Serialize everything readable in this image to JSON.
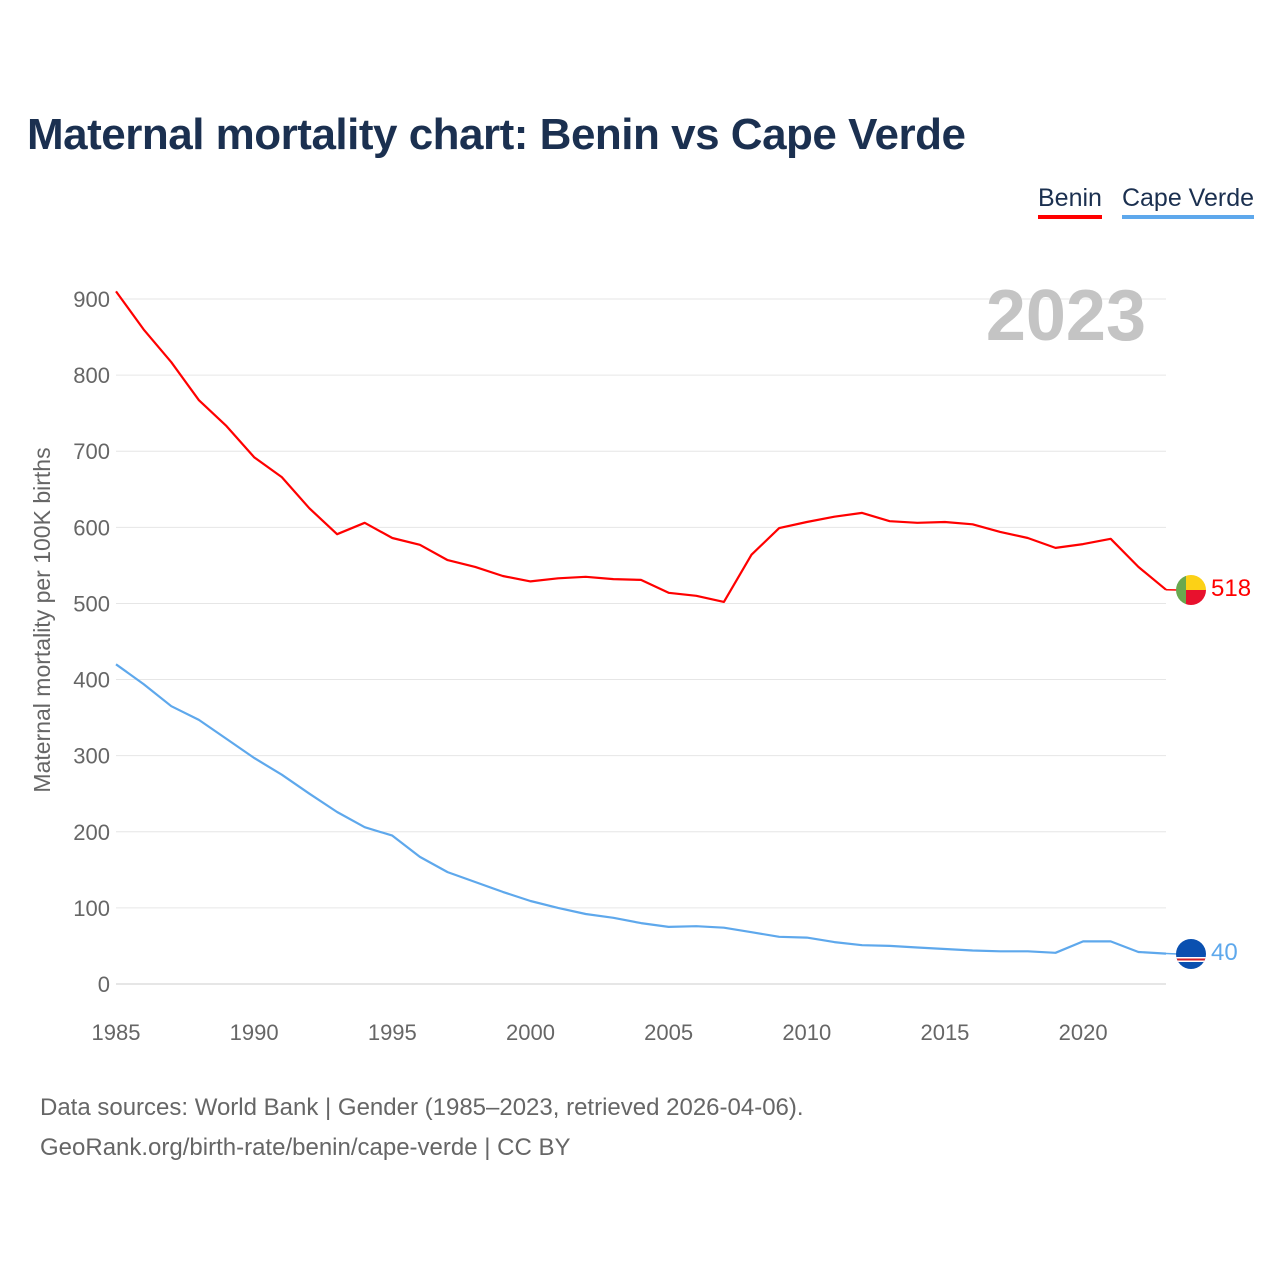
{
  "title": "Maternal mortality chart: Benin vs Cape Verde",
  "year_label": "2023",
  "footer": {
    "line1": "Data sources: World Bank | Gender (1985–2023, retrieved 2026-04-06).",
    "line2": "GeoRank.org/birth-rate/benin/cape-verde | CC BY"
  },
  "chart_data": {
    "type": "line",
    "title": "Maternal mortality chart: Benin vs Cape Verde",
    "xlabel": "",
    "ylabel": "Maternal mortality per 100K births",
    "xlim": [
      1985,
      2023
    ],
    "ylim": [
      0,
      900
    ],
    "yticks": [
      0,
      100,
      200,
      300,
      400,
      500,
      600,
      700,
      800,
      900
    ],
    "xticks": [
      1985,
      1990,
      1995,
      2000,
      2005,
      2010,
      2015,
      2020
    ],
    "grid": true,
    "legend": "top-right",
    "x": [
      1985,
      1986,
      1987,
      1988,
      1989,
      1990,
      1991,
      1992,
      1993,
      1994,
      1995,
      1996,
      1997,
      1998,
      1999,
      2000,
      2001,
      2002,
      2003,
      2004,
      2005,
      2006,
      2007,
      2008,
      2009,
      2010,
      2011,
      2012,
      2013,
      2014,
      2015,
      2016,
      2017,
      2018,
      2019,
      2020,
      2021,
      2022,
      2023
    ],
    "series": [
      {
        "name": "Benin",
        "color": "#ff0000",
        "end_label": "518",
        "values": [
          910,
          860,
          817,
          767,
          733,
          692,
          666,
          625,
          591,
          606,
          586,
          577,
          557,
          548,
          536,
          529,
          533,
          535,
          532,
          531,
          514,
          510,
          502,
          564,
          599,
          607,
          614,
          619,
          608,
          606,
          607,
          604,
          594,
          586,
          573,
          578,
          585,
          548,
          518
        ]
      },
      {
        "name": "Cape Verde",
        "color": "#5ea8ec",
        "end_label": "40",
        "values": [
          420,
          394,
          365,
          347,
          322,
          297,
          275,
          250,
          226,
          206,
          195,
          167,
          147,
          134,
          121,
          109,
          100,
          92,
          87,
          80,
          75,
          76,
          74,
          68,
          62,
          61,
          55,
          51,
          50,
          48,
          46,
          44,
          43,
          43,
          41,
          56,
          56,
          42,
          40
        ]
      }
    ]
  }
}
